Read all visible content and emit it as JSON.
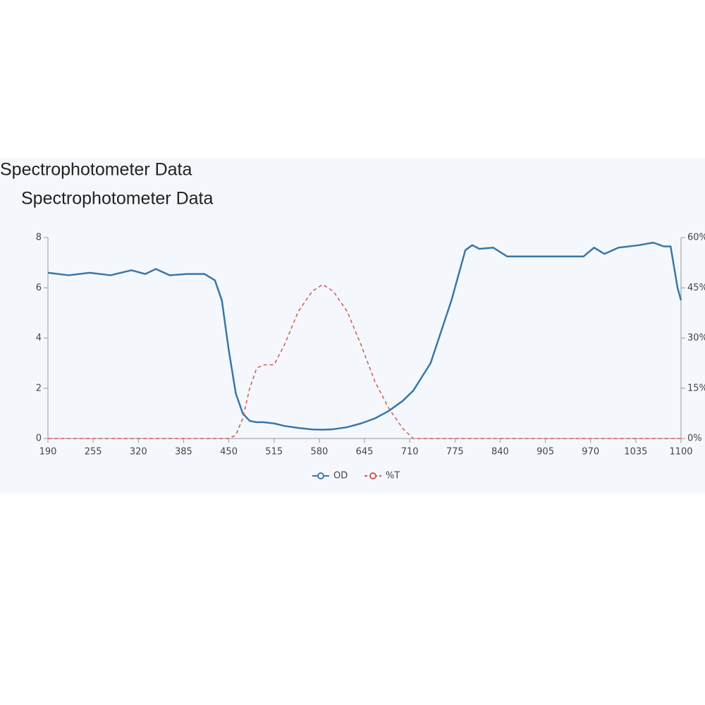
{
  "chart_data": {
    "type": "line",
    "titles": [
      "Spectrophotometer Data",
      "Spectrophotometer Data"
    ],
    "x": [
      190,
      220,
      250,
      280,
      310,
      330,
      345,
      365,
      390,
      415,
      430,
      440,
      450,
      460,
      470,
      480,
      490,
      500,
      515,
      530,
      550,
      570,
      585,
      600,
      620,
      640,
      660,
      680,
      700,
      715,
      740,
      770,
      790,
      800,
      810,
      830,
      850,
      880,
      910,
      940,
      960,
      975,
      990,
      1010,
      1040,
      1060,
      1075,
      1085,
      1095,
      1100
    ],
    "series": [
      {
        "name": "OD",
        "color": "#3a77a8",
        "dashed": false,
        "values": [
          6.6,
          6.5,
          6.6,
          6.5,
          6.7,
          6.55,
          6.75,
          6.5,
          6.55,
          6.55,
          6.3,
          5.5,
          3.5,
          1.8,
          1.0,
          0.7,
          0.65,
          0.65,
          0.6,
          0.5,
          0.42,
          0.36,
          0.35,
          0.37,
          0.45,
          0.6,
          0.8,
          1.1,
          1.5,
          1.9,
          3.0,
          5.5,
          7.5,
          7.7,
          7.55,
          7.6,
          7.25,
          7.25,
          7.25,
          7.25,
          7.25,
          7.6,
          7.35,
          7.6,
          7.7,
          7.8,
          7.65,
          7.65,
          6.0,
          5.5
        ]
      },
      {
        "name": "%T",
        "color": "#d9534f",
        "dashed": true,
        "axis": "y2",
        "values": [
          0,
          0,
          0,
          0,
          0,
          0,
          0,
          0,
          0,
          0,
          0,
          0,
          0,
          1,
          6,
          15,
          21,
          22,
          22,
          28,
          38,
          44,
          46,
          44,
          38,
          28,
          17,
          9,
          3,
          0,
          0,
          0,
          0,
          0,
          0,
          0,
          0,
          0,
          0,
          0,
          0,
          0,
          0,
          0,
          0,
          0,
          0,
          0,
          0,
          0
        ]
      }
    ],
    "xlim": [
      190,
      1100
    ],
    "xticks": [
      190,
      255,
      320,
      385,
      450,
      515,
      580,
      645,
      710,
      775,
      840,
      905,
      970,
      1035,
      1100
    ],
    "ylim": [
      0,
      8
    ],
    "yticks": [
      0,
      2,
      4,
      6,
      8
    ],
    "y2lim": [
      0,
      60
    ],
    "y2ticks": [
      {
        "value": 0,
        "label": "0%"
      },
      {
        "value": 15,
        "label": "15%"
      },
      {
        "value": 30,
        "label": "30%"
      },
      {
        "value": 45,
        "label": "45%"
      },
      {
        "value": 60,
        "label": "60%"
      }
    ]
  }
}
